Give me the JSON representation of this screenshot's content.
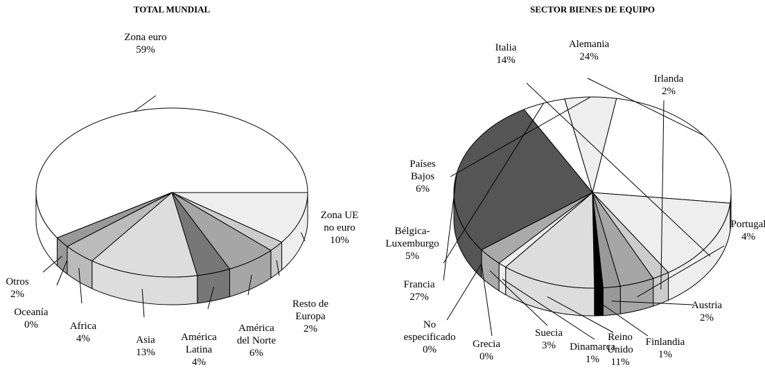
{
  "chart_data": [
    {
      "type": "pie",
      "title": "TOTAL MUNDIAL",
      "categories": [
        "Zona euro",
        "Zona UE\nno euro",
        "Resto de\nEuropa",
        "América\ndel Norte",
        "América\nLatina",
        "Asia",
        "Africa",
        "Oceanía",
        "Otros"
      ],
      "values": [
        59,
        10,
        2,
        6,
        4,
        13,
        4,
        0,
        2
      ],
      "value_labels": [
        "59%",
        "10%",
        "2%",
        "6%",
        "4%",
        "13%",
        "4%",
        "0%",
        "2%"
      ],
      "colors": [
        "#ffffff",
        "#eeeeee",
        "#cccccc",
        "#a6a6a6",
        "#777777",
        "#dddddd",
        "#bbbbbb",
        "#888888",
        "#999999"
      ]
    },
    {
      "type": "pie",
      "title": "SECTOR BIENES DE EQUIPO",
      "categories": [
        "Alemania",
        "Italia",
        "Irlanda",
        "Portugal",
        "Austria",
        "Finlandia",
        "Reino\nUnido",
        "Dinamarca",
        "Suecia",
        "Grecia",
        "No\nespecificado",
        "Francia",
        "Bélgica-\nLuxemburgo",
        "Países\nBajos"
      ],
      "values": [
        24,
        14,
        2,
        4,
        2,
        1,
        11,
        1,
        3,
        0,
        0,
        27,
        5,
        6
      ],
      "value_labels": [
        "24%",
        "14%",
        "2%",
        "4%",
        "2%",
        "1%",
        "11%",
        "1%",
        "3%",
        "0%",
        "0%",
        "27%",
        "5%",
        "6%"
      ],
      "colors": [
        "#ffffff",
        "#eeeeee",
        "#cccccc",
        "#a6a6a6",
        "#999999",
        "#000000",
        "#dddddd",
        "#eeeeee",
        "#aaaaaa",
        "#888888",
        "#777777",
        "#555555",
        "#ffffff",
        "#eeeeee"
      ]
    }
  ]
}
